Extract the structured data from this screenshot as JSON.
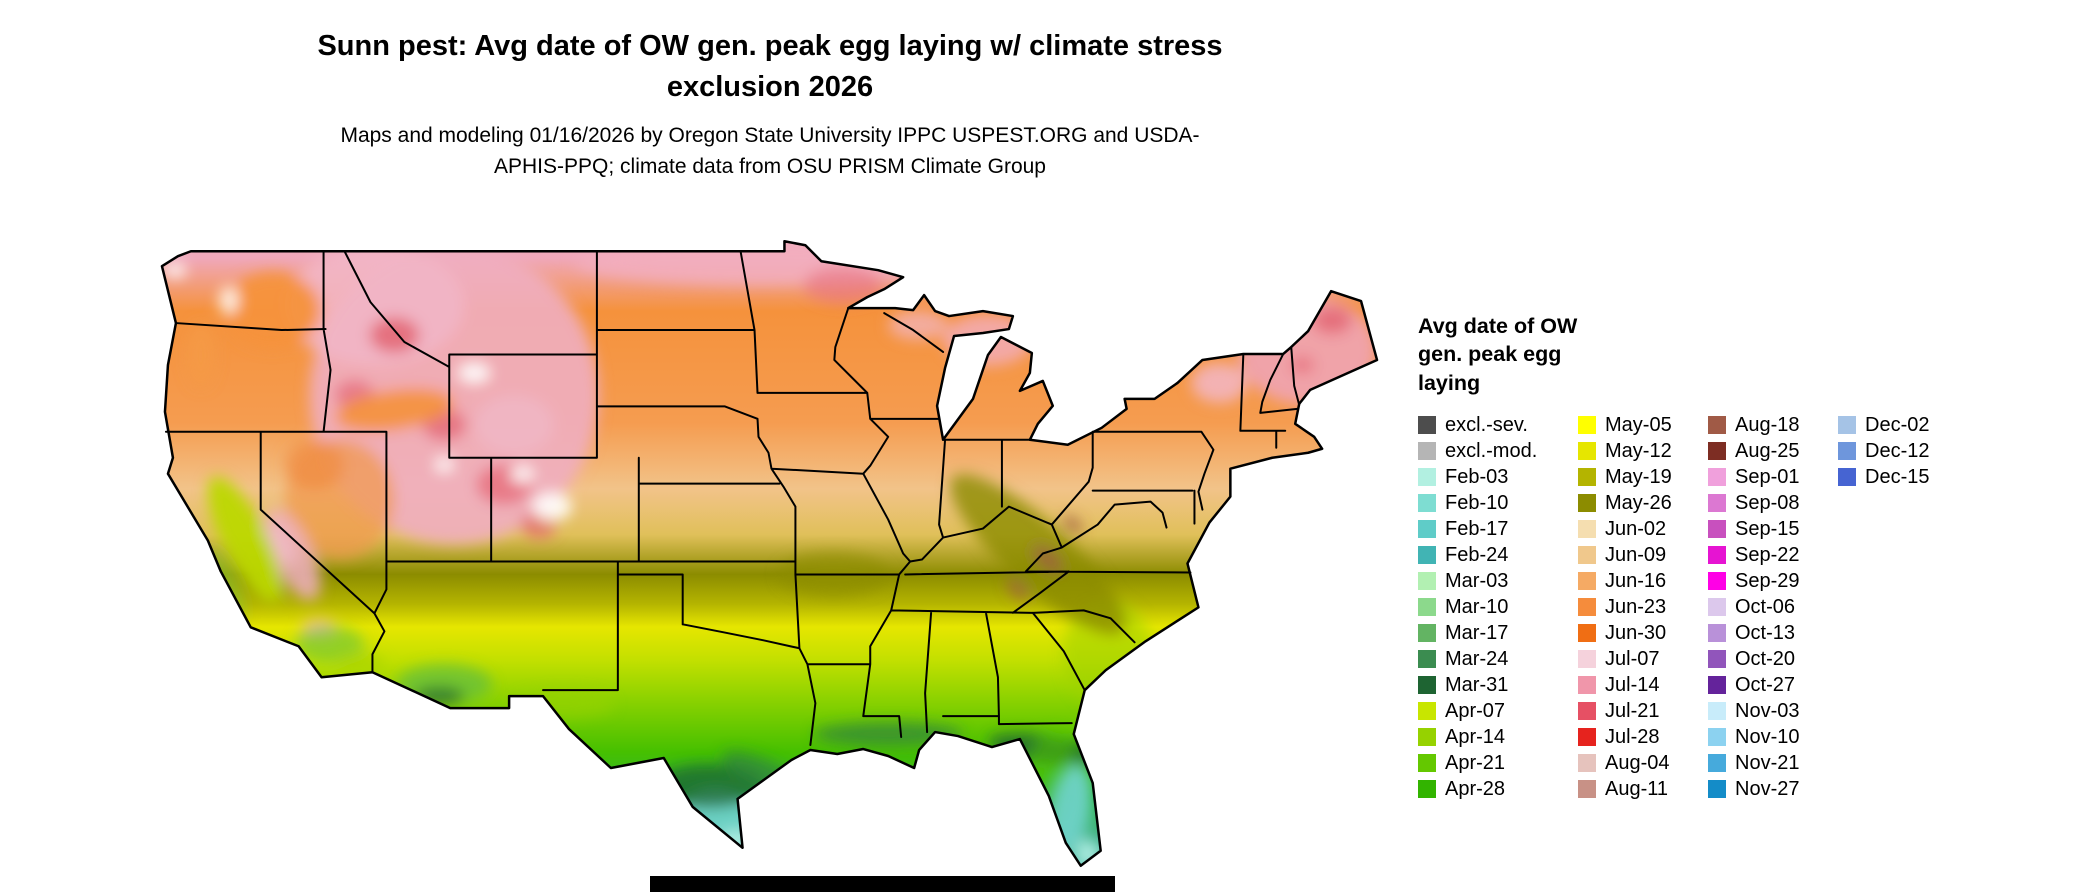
{
  "header": {
    "title": "Sunn pest: Avg date of OW gen. peak egg laying w/ climate stress exclusion 2026",
    "subtitle": "Maps and modeling 01/16/2026 by Oregon State University IPPC USPEST.ORG and USDA-APHIS-PPQ; climate data from OSU PRISM Climate Group"
  },
  "legend": {
    "title": "Avg date of OW gen. peak egg laying",
    "columns": [
      {
        "entries": [
          {
            "label": "excl.-sev.",
            "color": "#4d4d4d"
          },
          {
            "label": "excl.-mod.",
            "color": "#b5b5b5"
          },
          {
            "label": "Feb-03",
            "color": "#b2f0e1"
          },
          {
            "label": "Feb-10",
            "color": "#7eddd2"
          },
          {
            "label": "Feb-17",
            "color": "#5fccc8"
          },
          {
            "label": "Feb-24",
            "color": "#41b4b4"
          },
          {
            "label": "Mar-03",
            "color": "#b2f0b2"
          },
          {
            "label": "Mar-10",
            "color": "#8cd98c"
          },
          {
            "label": "Mar-17",
            "color": "#63b463"
          },
          {
            "label": "Mar-24",
            "color": "#3b8c50"
          },
          {
            "label": "Mar-31",
            "color": "#1e6432"
          },
          {
            "label": "Apr-07",
            "color": "#c8e600"
          },
          {
            "label": "Apr-14",
            "color": "#96d200"
          },
          {
            "label": "Apr-21",
            "color": "#64c800"
          },
          {
            "label": "Apr-28",
            "color": "#32b400"
          }
        ]
      },
      {
        "entries": [
          {
            "label": "May-05",
            "color": "#ffff00"
          },
          {
            "label": "May-12",
            "color": "#e6e600"
          },
          {
            "label": "May-19",
            "color": "#b4b400"
          },
          {
            "label": "May-26",
            "color": "#8c8c00"
          },
          {
            "label": "Jun-02",
            "color": "#f5deb0"
          },
          {
            "label": "Jun-09",
            "color": "#f0c88c"
          },
          {
            "label": "Jun-16",
            "color": "#f5aa64"
          },
          {
            "label": "Jun-23",
            "color": "#f58c3c"
          },
          {
            "label": "Jun-30",
            "color": "#f06e14"
          },
          {
            "label": "Jul-07",
            "color": "#f5d2dc"
          },
          {
            "label": "Jul-14",
            "color": "#f096aa"
          },
          {
            "label": "Jul-21",
            "color": "#e65064"
          },
          {
            "label": "Jul-28",
            "color": "#e6231e"
          },
          {
            "label": "Aug-04",
            "color": "#e6c3bd"
          },
          {
            "label": "Aug-11",
            "color": "#c89186"
          }
        ]
      },
      {
        "entries": [
          {
            "label": "Aug-18",
            "color": "#a05a46"
          },
          {
            "label": "Aug-25",
            "color": "#7d2d23"
          },
          {
            "label": "Sep-01",
            "color": "#f0a0dc"
          },
          {
            "label": "Sep-08",
            "color": "#dc78d2"
          },
          {
            "label": "Sep-15",
            "color": "#c850be"
          },
          {
            "label": "Sep-22",
            "color": "#e614d2"
          },
          {
            "label": "Sep-29",
            "color": "#ff00e6"
          },
          {
            "label": "Oct-06",
            "color": "#dcc8ec"
          },
          {
            "label": "Oct-13",
            "color": "#b991d9"
          },
          {
            "label": "Oct-20",
            "color": "#9155bb"
          },
          {
            "label": "Oct-27",
            "color": "#64239b"
          },
          {
            "label": "Nov-03",
            "color": "#c8ecfa"
          },
          {
            "label": "Nov-10",
            "color": "#8cd2f0"
          },
          {
            "label": "Nov-21",
            "color": "#46aadc"
          },
          {
            "label": "Nov-27",
            "color": "#148cc8"
          }
        ]
      },
      {
        "entries": [
          {
            "label": "Dec-02",
            "color": "#a5c3e6"
          },
          {
            "label": "Dec-12",
            "color": "#6e96dc"
          },
          {
            "label": "Dec-15",
            "color": "#4664d2"
          }
        ]
      }
    ]
  }
}
